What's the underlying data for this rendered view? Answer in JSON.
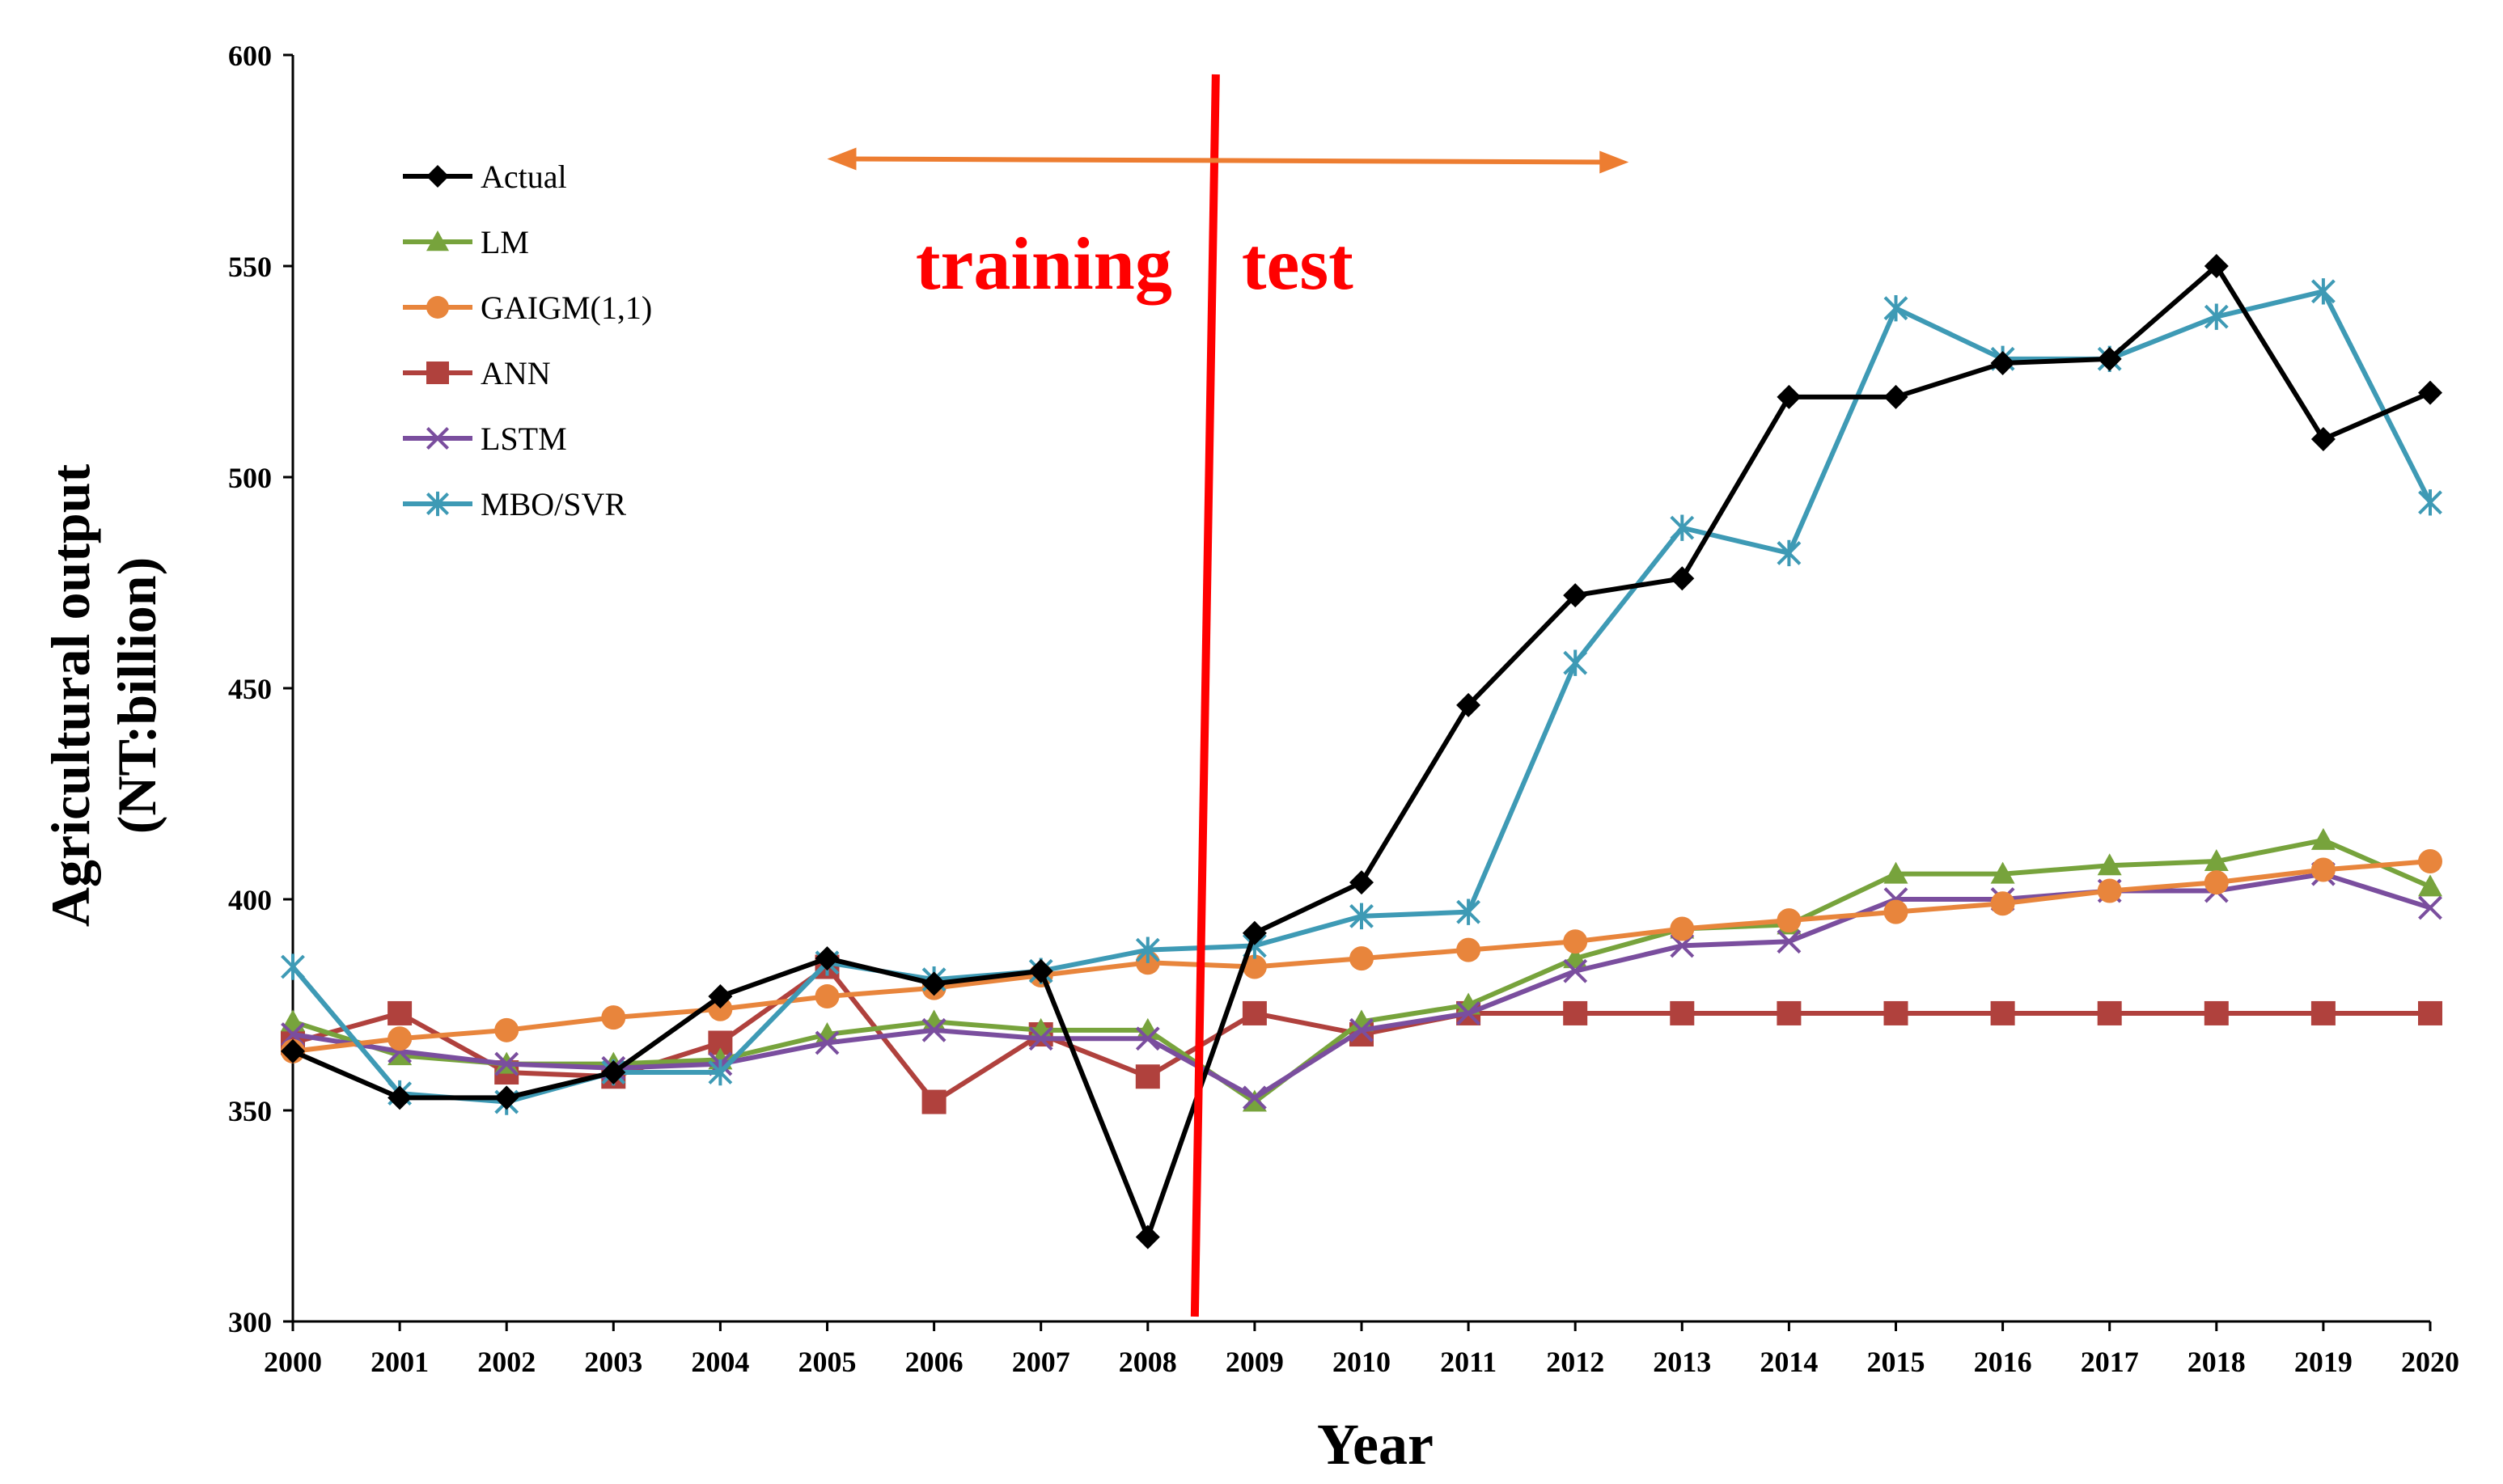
{
  "chart_data": {
    "type": "line",
    "title": "",
    "xlabel": "Year",
    "ylabel_line1": "Agricultural output",
    "ylabel_line2": "(NT:billion)",
    "ylim": [
      300,
      600
    ],
    "yticks": [
      300,
      350,
      400,
      450,
      500,
      550,
      600
    ],
    "categories": [
      "2000",
      "2001",
      "2002",
      "2003",
      "2004",
      "2005",
      "2006",
      "2007",
      "2008",
      "2009",
      "2010",
      "2011",
      "2012",
      "2013",
      "2014",
      "2015",
      "2016",
      "2017",
      "2018",
      "2019",
      "2020"
    ],
    "series": [
      {
        "name": "Actual",
        "color": "#000000",
        "marker": "diamond",
        "values": [
          364,
          353,
          353,
          359,
          377,
          386,
          380,
          383,
          320,
          392,
          404,
          446,
          472,
          476,
          519,
          519,
          527,
          528,
          550,
          509,
          520
        ]
      },
      {
        "name": "LM",
        "color": "#77A33C",
        "marker": "triangle",
        "values": [
          371,
          363,
          361,
          361,
          362,
          368,
          371,
          369,
          369,
          352,
          371,
          375,
          386,
          393,
          394,
          406,
          406,
          408,
          409,
          414,
          403
        ]
      },
      {
        "name": "GAIGM(1,1)",
        "color": "#E8853C",
        "marker": "circle",
        "values": [
          364,
          367,
          369,
          372,
          374,
          377,
          379,
          382,
          385,
          384,
          386,
          388,
          390,
          393,
          395,
          397,
          399,
          402,
          404,
          407,
          409
        ]
      },
      {
        "name": "ANN",
        "color": "#B0413D",
        "marker": "square",
        "values": [
          366,
          373,
          359,
          358,
          366,
          384,
          352,
          368,
          358,
          373,
          368,
          373,
          373,
          373,
          373,
          373,
          373,
          373,
          373,
          373,
          373
        ]
      },
      {
        "name": "LSTM",
        "color": "#7A4E9E",
        "marker": "x",
        "values": [
          368,
          364,
          361,
          360,
          361,
          366,
          369,
          367,
          367,
          353,
          369,
          373,
          383,
          389,
          390,
          400,
          400,
          402,
          402,
          406,
          398
        ]
      },
      {
        "name": "MBO/SVR",
        "color": "#3E9AB5",
        "marker": "asterisk",
        "values": [
          384,
          354,
          352,
          359,
          359,
          385,
          381,
          383,
          388,
          389,
          396,
          397,
          456,
          488,
          482,
          540,
          528,
          528,
          538,
          544,
          494
        ]
      }
    ],
    "annotations": {
      "training_label": "training",
      "test_label": "test",
      "split_between": [
        "2008",
        "2009"
      ],
      "split_color": "#FF0000",
      "arrow_color": "#ED7D31",
      "arrow_from_year": 2005,
      "arrow_to_year": 2012.5,
      "arrow_value": 575
    },
    "legend_position": "top-left"
  }
}
